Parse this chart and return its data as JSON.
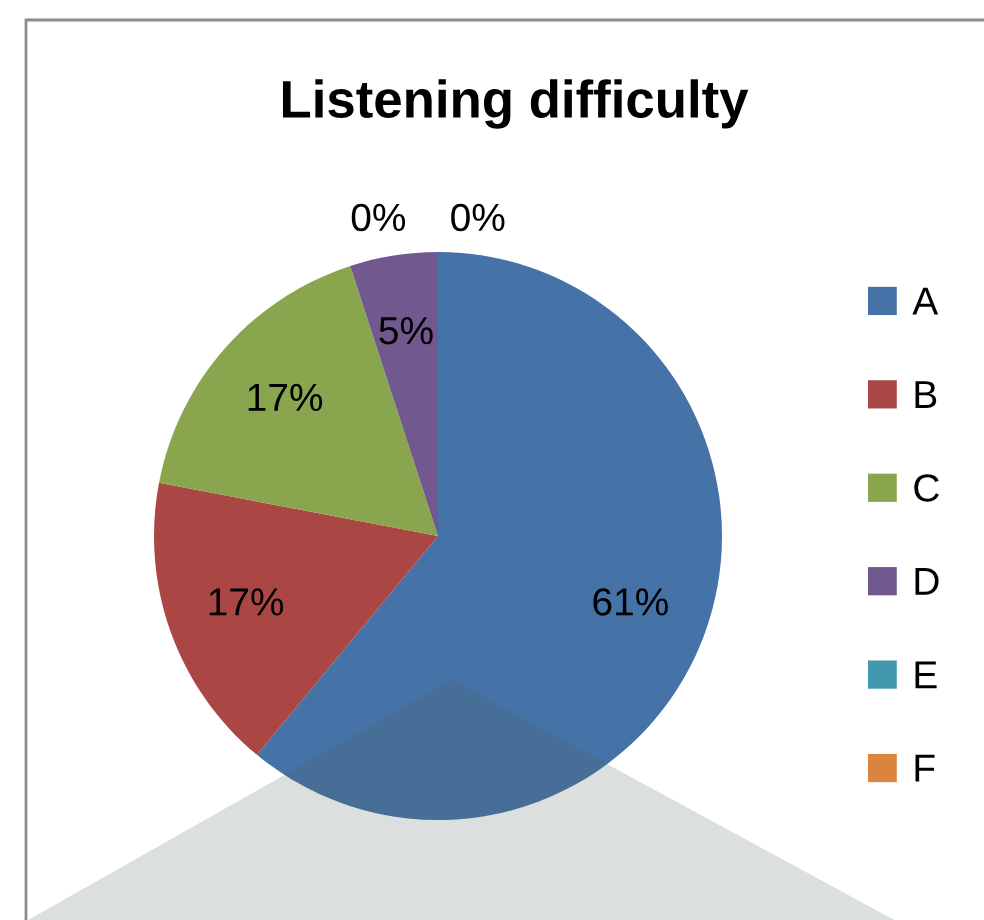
{
  "chart_data": {
    "type": "pie",
    "title": "Listening difficulty",
    "categories": [
      "A",
      "B",
      "C",
      "D",
      "E",
      "F"
    ],
    "values": [
      61,
      17,
      17,
      5,
      0,
      0
    ],
    "colors": [
      "#4572a7",
      "#aa4643",
      "#89a54e",
      "#71588f",
      "#4198af",
      "#db843d"
    ],
    "value_labels": [
      "61%",
      "17%",
      "17%",
      "5%",
      "0%",
      "0%"
    ],
    "legend": "right"
  }
}
